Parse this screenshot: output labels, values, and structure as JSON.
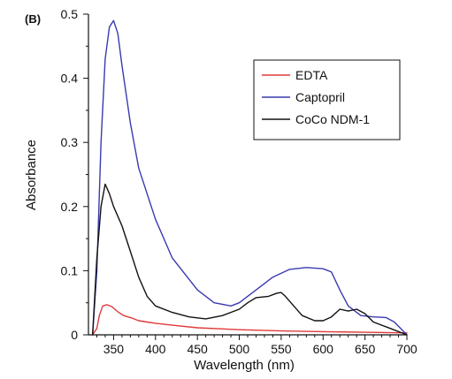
{
  "chart_data": {
    "type": "line",
    "panel_label": "(B)",
    "xlabel": "Wavelength (nm)",
    "ylabel": "Absorbance",
    "xlim": [
      320,
      700
    ],
    "ylim": [
      0,
      0.5
    ],
    "x_ticks": [
      350,
      400,
      450,
      500,
      550,
      600,
      650,
      700
    ],
    "y_ticks": [
      0,
      0.1,
      0.2,
      0.3,
      0.4,
      0.5
    ],
    "y_tick_labels": [
      "0",
      "0.1",
      "0.2",
      "0.3",
      "0.4",
      "0.5"
    ],
    "legend_position": "top-right",
    "series": [
      {
        "name": "EDTA",
        "color": "#e03a3a",
        "points": [
          [
            325,
            0.0
          ],
          [
            330,
            0.01
          ],
          [
            333,
            0.03
          ],
          [
            337,
            0.045
          ],
          [
            342,
            0.047
          ],
          [
            348,
            0.044
          ],
          [
            355,
            0.036
          ],
          [
            362,
            0.03
          ],
          [
            372,
            0.026
          ],
          [
            380,
            0.022
          ],
          [
            390,
            0.02
          ],
          [
            400,
            0.018
          ],
          [
            420,
            0.015
          ],
          [
            450,
            0.011
          ],
          [
            500,
            0.008
          ],
          [
            550,
            0.006
          ],
          [
            600,
            0.005
          ],
          [
            650,
            0.004
          ],
          [
            700,
            0.003
          ]
        ]
      },
      {
        "name": "Captopril",
        "color": "#3a3ab0",
        "points": [
          [
            325,
            0.0
          ],
          [
            330,
            0.1
          ],
          [
            335,
            0.3
          ],
          [
            340,
            0.43
          ],
          [
            345,
            0.48
          ],
          [
            350,
            0.49
          ],
          [
            355,
            0.47
          ],
          [
            360,
            0.42
          ],
          [
            370,
            0.33
          ],
          [
            380,
            0.26
          ],
          [
            390,
            0.22
          ],
          [
            400,
            0.18
          ],
          [
            420,
            0.12
          ],
          [
            450,
            0.07
          ],
          [
            470,
            0.05
          ],
          [
            490,
            0.045
          ],
          [
            500,
            0.05
          ],
          [
            520,
            0.07
          ],
          [
            540,
            0.09
          ],
          [
            560,
            0.102
          ],
          [
            580,
            0.105
          ],
          [
            600,
            0.103
          ],
          [
            610,
            0.098
          ],
          [
            620,
            0.07
          ],
          [
            630,
            0.045
          ],
          [
            645,
            0.03
          ],
          [
            660,
            0.028
          ],
          [
            675,
            0.027
          ],
          [
            685,
            0.02
          ],
          [
            700,
            0.0
          ]
        ]
      },
      {
        "name": "CoCo NDM-1",
        "color": "#111111",
        "points": [
          [
            325,
            0.0
          ],
          [
            330,
            0.12
          ],
          [
            335,
            0.2
          ],
          [
            340,
            0.235
          ],
          [
            345,
            0.22
          ],
          [
            350,
            0.2
          ],
          [
            360,
            0.17
          ],
          [
            370,
            0.13
          ],
          [
            380,
            0.09
          ],
          [
            390,
            0.06
          ],
          [
            400,
            0.045
          ],
          [
            420,
            0.035
          ],
          [
            440,
            0.028
          ],
          [
            460,
            0.025
          ],
          [
            480,
            0.03
          ],
          [
            500,
            0.04
          ],
          [
            510,
            0.05
          ],
          [
            520,
            0.058
          ],
          [
            535,
            0.06
          ],
          [
            545,
            0.065
          ],
          [
            550,
            0.066
          ],
          [
            555,
            0.06
          ],
          [
            565,
            0.045
          ],
          [
            575,
            0.03
          ],
          [
            590,
            0.022
          ],
          [
            600,
            0.022
          ],
          [
            610,
            0.028
          ],
          [
            620,
            0.04
          ],
          [
            630,
            0.037
          ],
          [
            640,
            0.04
          ],
          [
            650,
            0.033
          ],
          [
            660,
            0.02
          ],
          [
            680,
            0.01
          ],
          [
            700,
            0.0
          ]
        ]
      }
    ]
  }
}
